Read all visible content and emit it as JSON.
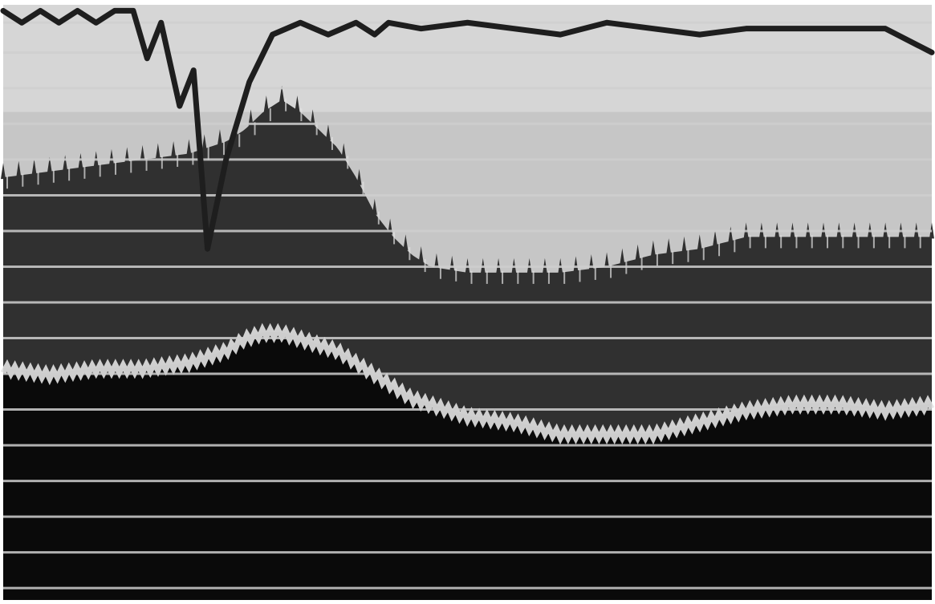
{
  "chart_data": {
    "type": "area",
    "title": "",
    "xlabel": "",
    "ylabel": "",
    "xlim": [
      0,
      100
    ],
    "ylim": [
      0,
      100
    ],
    "grid": true,
    "grid_lines_y": [
      97,
      92,
      86,
      80,
      74,
      68,
      62,
      56,
      50,
      44,
      38,
      32,
      26,
      20,
      14,
      8,
      2
    ],
    "colors": {
      "background": "#ffffff",
      "upper_band": "#c6c6c6",
      "upper_band_light": "#d6d6d6",
      "mid_band": "#303030",
      "lower_band": "#0a0a0a",
      "grid": "#cfcfcf",
      "edge_noise": "#e2e2e2",
      "trace": "#1e1e1e"
    },
    "series": [
      {
        "role": "upper_boundary",
        "x": [
          0,
          5,
          10,
          15,
          20,
          22,
          24,
          26,
          28,
          30,
          32,
          34,
          36,
          38,
          40,
          42,
          44,
          46,
          50,
          55,
          60,
          65,
          70,
          75,
          80,
          85,
          90,
          95,
          100
        ],
        "values": [
          71,
          72,
          73,
          74,
          75,
          76,
          77,
          79,
          82,
          84,
          82,
          79,
          76,
          71,
          65,
          61,
          58,
          56,
          55,
          55,
          55,
          56,
          58,
          59,
          61,
          61,
          61,
          61,
          61
        ]
      },
      {
        "role": "lower_boundary",
        "x": [
          0,
          5,
          10,
          15,
          20,
          22,
          24,
          26,
          28,
          30,
          32,
          34,
          36,
          38,
          40,
          42,
          44,
          46,
          50,
          55,
          60,
          65,
          70,
          75,
          80,
          85,
          90,
          95,
          100
        ],
        "values": [
          39,
          38,
          39,
          39,
          40,
          41,
          42,
          44,
          45,
          45,
          44,
          43,
          42,
          40,
          38,
          36,
          34,
          33,
          31,
          30,
          28,
          28,
          28,
          30,
          32,
          33,
          33,
          32,
          33
        ]
      },
      {
        "role": "trace",
        "x": [
          0,
          2,
          4,
          6,
          8,
          10,
          12,
          14,
          15.5,
          17,
          19,
          20.5,
          22,
          24,
          26.5,
          29,
          32,
          35,
          38,
          40,
          41.5,
          45,
          50,
          55,
          60,
          65,
          70,
          75,
          80,
          85,
          90,
          95,
          100
        ],
        "values": [
          99,
          97,
          99,
          97,
          99,
          97,
          99,
          99,
          91,
          97,
          83,
          89,
          59,
          74,
          87,
          95,
          97,
          95,
          97,
          95,
          97,
          96,
          97,
          96,
          95,
          97,
          96,
          95,
          96,
          96,
          96,
          96,
          92
        ]
      }
    ]
  }
}
